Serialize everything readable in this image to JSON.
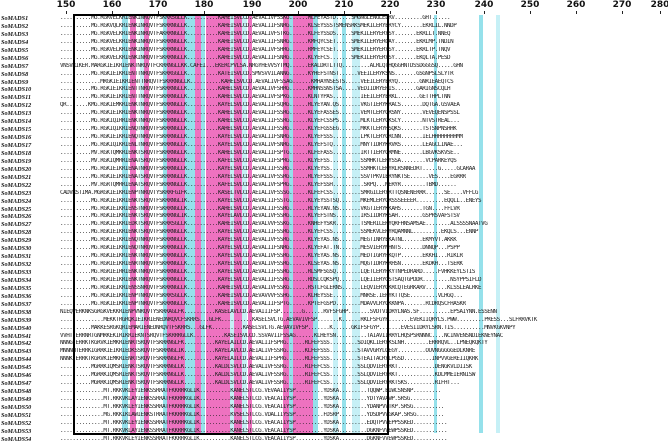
{
  "ruler": {
    "ticks": [
      {
        "label": "150"
      },
      {
        "label": "160"
      },
      {
        "label": "170"
      },
      {
        "label": "180"
      },
      {
        "label": "190"
      },
      {
        "label": "200"
      },
      {
        "label": "210"
      },
      {
        "label": "220"
      },
      {
        "label": "230"
      },
      {
        "label": "240"
      },
      {
        "label": "250"
      },
      {
        "label": "260"
      },
      {
        "label": "270"
      },
      {
        "label": "280"
      }
    ]
  },
  "colors": {
    "identical": "#e94aae",
    "similar": "#54cede",
    "box": "#000000"
  },
  "sequences": [
    {
      "name": "SoMADS1",
      "seq": "..........MG.RGRVELKRIENKINRQVTFSKRRSGLLK..........KAHEISVLCD.AEVALIVFSSKG......MLFEYASTD.....SMGNGLENGLELRV.........GHT......"
    },
    {
      "name": "SoMADS2",
      "seq": "..........MG.RGKVQLKRIENKINRQVTFSKRRNGLLK..........KAHEISVLCD.AEVALIIFSNRG......KLSEYSSSTSMENSRKSMEKILERYERYCY.......EKRLIL.NNDP"
    },
    {
      "name": "SoMADS3",
      "seq": "..........MG.RGKVELKRIENKINRQVTFAKRRNGLLK..........KAHEISVLCD.AEVALIVFSTKG......KLFEYSSDS.....SMEKILERYERYSY.......EKRLLT.NNEQ"
    },
    {
      "name": "SoMADS4",
      "seq": "..........MG.RGKVELKRIENKINRQVTFSKRRNGLLK..........KAHEISVLCD.AEVALIIFSNRG......KMFQYCSET.....SMEKILERYERCAY.......EKRLMP.TNDIN"
    },
    {
      "name": "SoMADS5",
      "seq": "..........MG.RGKVELKRIENKINRQVTFSKRRNGLLK..........KAHEISVLCD.AEVALIVFSHRG......RMFEYCSET.....SMEKILERYERYSY.......EKRLTP.TNQV"
    },
    {
      "name": "SoMADS6",
      "seq": "..........MG.RGKVELKRIENKINRQVTFSKRRNGLLK..........KAHEISVLCD.AEVALIIFSNRG......KLYEFCS.......SMEKILERYERYSY.......EKQLTA.PESD"
    },
    {
      "name": "SoMADS7",
      "seq": "VNSVRIKER.MARGKIEIKRIENKTNRQVTFCKRRNGLLKK.CAFEI...EKERCPVLSA.NRGYHEVVSYTMQ......EKALDRTLTTQ.........ALRLQTHQGGHNTDSSDGGGSQ.....GHN"
    },
    {
      "name": "SoMADS8",
      "seq": "..........MG.RGKIEIKRIENTTNRQVTFSKRRGGLLK..........KATEISVLCD.SMVSVVILANNG......KYHEFSTNST......VEEILERYKSNS.......GSGNPSLSLYTR"
    },
    {
      "name": "SoMADS9",
      "seq": ".............MRGKIEIKRIENTTNRQVTFSKRRNGLLK..........KAHELSVLCD.AEVALIVFSSAG......KMHAYNSESTS.....VEEILERYERYQ.......GNRIEAEQTCS"
    },
    {
      "name": "SoMADS10",
      "seq": "..........MG.RGKIEIKRIENTTNRQVTFSKRRNGLLK..........KAHELSVLCD.AEVALIVFSHRG......KMHNSSNSTSA.....VEDIIDRYERIS.......GARIGNSCQLH"
    },
    {
      "name": "SoMADS11",
      "seq": "..........MG.RGKIEIKRIENTTNRQVTFSKRRNGLLK..........KAHELSVLCD.AEVALIVFSPKG......KLNTYPAS.........IEEILERYERKL.......GETTHPLTNN"
    },
    {
      "name": "SoMADS12",
      "seq": "QR.......KMG.RGKIEMKRIENKTNRQVTFSKRRNGLLK..........KAYELSVLCD.AEVALIIFSQRG......RLYEYAN.QS.......VKGTIERYKRACS.......DQTGA.GSVAEA"
    },
    {
      "name": "SoMADS13",
      "seq": "..........MG.RGKIEIKRIENKTNRQVTFSKRRNGLLK..........KAHELSVLCD.AEVALIIFSSRG......KLYEFASSES.......VEMTLERYQRSNY.......VEVEQENSPSSL"
    },
    {
      "name": "SoMADS14",
      "seq": "..........MG.RGKIQIRRIENKTNRQVTFSKRRNGLLK..........KAHELSVLCD.AEVALIIFSSRG......KLYEFCSSPS.......MLKTLERYQKSCY.......NTVSTREAL..."
    },
    {
      "name": "SoMADS15",
      "seq": "..........MG.RGKIQIKRIENQTNRQVTFSKRRNGLLK..........KAHELSVLCD.AEVALIIFSSRG......KLYEFGSSEG.......MKKTLERYHSQKS.......TSTSNPNSHHK"
    },
    {
      "name": "SoMADS16",
      "seq": "..........MG.RGKIEIKRIENQTNRQVTFSKRRNGLLK..........KAYELSVLCD.AEVALIIFSNRG......KLYEFSSS.........LPKTLERYQRCNN.......IELHHHHHHHHMM"
    },
    {
      "name": "SoMADS17",
      "seq": "..........MG.RGKIQIKRIENLTNRQVTFSKRRNGLLK..........KAYELSVLCD.AEVALIVFSNRG......KLYEFSTQ.........MNYTIDRYKRVRS.......LEAGCLINAE..."
    },
    {
      "name": "SoMADS18",
      "seq": "..........MV.RGKTQMKRIENKTSRQVTFSKRRNGLLK..........KAHELSVLCD.AEVALIIFSPTG......KLFEFASS.........IRTTIERYQRMNE.......LBGVKSKVSE.."
    },
    {
      "name": "SoMADS19",
      "seq": "..........MV.RGKIQMRRIENATSRQVTFSKRRNGLLK..........KAFELSVLCD.AEVALIIFSPRG......KLYEFSS..........SSMHKTLERYSSA........VCPARKEYQS"
    },
    {
      "name": "SoMADS20",
      "seq": "..........MG.RGKIEIKRIENATNRQVTFSKRRNGLLK..........KAYELSVLCD.AEVALIIFSSRG......KLYEYSS..........SSMHKTLERYRLRSNNEDRT.....G.....GCARAA"
    },
    {
      "name": "SoMADS21",
      "seq": "..........MG.RGKIEIKRIENATSRQVTFSKRRNGLLK..........KAYELSVLCD.AEVALIVFSSRG......RLYEFSSS.........SSVTPKVIERYNKTSE......VES....EGRRR"
    },
    {
      "name": "SoMADS22",
      "seq": "..........MV.RGRTQMRRIENATSRQVTFSKRRNGLLK..........KAFELSVLCD.AEVALIVFSPRG......KLYEFSSH..........SRPQ...MERYR........TBMD......"
    },
    {
      "name": "SoMADS23",
      "seq": "CADVRSTIMA.MGRGKIEIKRIENPTNRQVTYSKRRFGIFK..........KASELTVLCD.AEIALIVFSSSG......KLFEFCSS.........SMRGILERYRTTQSNENERRR......SE....VFFLG"
    },
    {
      "name": "SoMADS24",
      "seq": "..........MG.RGKIEIKRIENKTSRQVTFSKRRNGLIK..........KAYELSVLCD.AEVALIIFSSTG......KLYEYSSTSQ.......MKEMLERYQRSSSEEEER.........EQQLL..ENEYS"
    },
    {
      "name": "SoMADS25",
      "seq": "..........MG.RGKIEIKRIENSTNRQVTFSKRRNGLLK..........KAHELSVLCD.AEVALIIFSSRG......RLYEYAN.NS.......VKGTIERYKKAHS.......TGN....FFLVR"
    },
    {
      "name": "SoMADS26",
      "seq": "..........MG.RGKIEIKRIENKTSRQVTFSKRRNGLIK..........KAYELAVLCD.AEVALIVFSSRG......KLYEFSTNS........IRSIIDRYKSAH........GSPRSVAFSTSV"
    },
    {
      "name": "SoMADS27",
      "seq": "..........MG.RGKIEIKRIEDKTSRQVTFSKRRSGLLK..........KAHEISVLCD.AEVALVVFSSKG......KNHEFYSKR........TSMERILERYQRFHNSAMSAE........ALSSSSNAATVG"
    },
    {
      "name": "SoMADS28",
      "seq": "..........MG.RGKIEIKRIENKTSRQVTFSKRRNGLLK..........KAYELSVLCD.AEVALIIFSSRG......KLYEFCSS.........SSMEKVLERYRQAMNNL.........EKQLS...ENNP"
    },
    {
      "name": "SoMADS29",
      "seq": "..........MG.RGKIEIKRIENQTNRQVTFSKRRNGLLK..........KAYELSVLCD.AEVALIVFSSRG......KLYEYAS.NS.......MEGTINRYEKATNL......EKMYVT.AKKK"
    },
    {
      "name": "SoMADS30",
      "seq": "..........MG.RGKIEIKRIENQTNRQVTFSKRRNGLLK..........KAYELSVLCD.AEVALIIFSNRG......KLYEFAT.TN.......MESVIERYNHNTS.......DNNQP...PSPP"
    },
    {
      "name": "SoMADS31",
      "seq": "..........MG.RGKIEIKRIENKTNRQVTFSKRRNGLLK..........KAYELSVLCD.AEVALIVFSSRG......KLYEYAS.NS.......MEDTIGRYHKQTP.......EKKHI...RIKLR"
    },
    {
      "name": "SoMADS32",
      "seq": "..........MG.RGRIEIKRIENRTNRQVTFSKRRNGLLK..........KAYELSVLCD.AEVALIVFSSRG......KLSEYAS.NS.......MQGTIDRYKRHSN.......EKDKH...TSERK"
    },
    {
      "name": "SoMADS33",
      "seq": "..........MG.RGRIEIRRIENKTNRQVTFSKRRNGLLK..........KAYELSVLCD.AEVALIIFSSRG......RLSMFSGSQ........LQETLERYRKYTNPEDRARD.....FVHKKEYLSTIS"
    },
    {
      "name": "SoMADS34",
      "seq": "..........MG.RGRIEIKRIENKTNRQVTFSKRRNGLLK..........KAYELSVLCD.AEVALIIFSSRG......RDSLCQKSPQ.......LQEIIERYGSTSAQTGPDDR.........NSYPPSIFLD"
    },
    {
      "name": "SoMADS35",
      "seq": "..........MG.RGKIEIKRIENSSNRQVTFSKRRNGLLK..........KAHEISVLCD.AEVALIVFSSKG......RSTLFGLERNS......LEQVIERYQKRCQTEGRKARV.......KLSSLEALRKE"
    },
    {
      "name": "SoMADS36",
      "seq": "..........MG.RGKIEIKRIENPTNRQVTFSKRRSGLLK..........KAHEISVLCD.AEVAVVVFSSHG......KLHEYSSE.........MNRSE.IERYKTTQSE.........VLHGQ..."
    },
    {
      "name": "SoMADS37",
      "seq": "..........MG.RGKIEIKRIENPTNRQVTFSKRRNGLLK..........KAHEISVLCD.AEVALIIFSPTG......KPTEFGSPD........MDAVVLRYQKKNPA.......RCDRQSCFHASKR"
    },
    {
      "name": "SoMADS38",
      "seq": "NIEQVERKNKSGRGKVEKKRIENPVNRQVTYSKRRAGLFK..........KASELAVLCD.AEVAIIIFSP.......G......RVFSFGHP.......SVDTVIDRYLNAS.SF..........EPSAIYNN.ESSENN"
    },
    {
      "name": "SoMADS39",
      "seq": "..............MEKKTRGRQKIEIKRIENEDNRQVCFSKRRS...GLFK..........KASELSVLTG.AEVAVIVFSP.......K......RKLFSFGYP.......EVEKIIQRYLS.PWW.........PRESS...SLFRRVKTK"
    },
    {
      "name": "SoMADS40",
      "seq": "..........MAKKESRGKQRIEMARIENEDNRQVTFSKRRS...GLFK..........KASELSVLTG.AEVAVIVFSP.......K......GKIFSFGYP.......EVESIIDRYLSRN.TIS..........MNVKGKVNPY"
    },
    {
      "name": "SoMADS41",
      "seq": "VVHTTERRNRTGNMRKEKIRIKRIEKNTSRQVTFSKRRRGLLK..........KASEISVLCD.SSVAVIIFSSAG......KLHEYSN..........TAIAVIIRRYLHQSPSRNNNC....NCINVENSNDIEKNEYNAC"
    },
    {
      "name": "SoMADS42",
      "seq": "NNNGTERRKTKGRVKIEMKRIENRTSRQVTFSKRRNGLFK..........KAYELAILCD.AEVALIIFSPRG......RLFEFSSS.........SDIQKLIERYKSLNH........ERRRQVL..LPNEQKQKTY"
    },
    {
      "name": "SoMADS43",
      "seq": "MNNNHTERRKIGRRKIEIKRIEDKSSRQVTFSKRRNGLIK..........KAYELAVLCD.AEIALIVFSSRG......KLFEFSSS.........STAVVGRYLQEGY.........OUVNGGGGGEDLKNRE"
    },
    {
      "name": "SoMADS44",
      "seq": "NNNKTERRKTKGRVKIEMKRIENRTSRQVTFSKRRNGLFK..........KAYELAILCD.AEVALIIFSPRG......RLFEFSSS.........STEAITACRYLPGSD.........INPVVGEREIIQKRK"
    },
    {
      "name": "SoMADS45",
      "seq": "..........MGRRKIQMSRIENKTSRQVTFSKRRNGLLK..........KALDLSVLCD.AEVALIVFSSRG......RIFEFCSS.........SSLQDVIERYRKT............DENGKVLDIISK"
    },
    {
      "name": "SoMADS46",
      "seq": "..........MGRRKIQMSRIENKTSRQVTFSKRRNGLLK..........KALDLSVLCD.AEVALIVFSSRG......RIFEFCSS.........SSLQDVIERYRKT............KDLMMEIERNISW"
    },
    {
      "name": "SoMADS47",
      "seq": "..........MGRRKIQMSRIENKTSRQVTFSKRRNGLLK..........KALDLSVLCD.AEVALIVFSSRG......RIFEFCSS.........SSLQDVIERYRKTSKS.........RIFHT..."
    },
    {
      "name": "SoMADS48",
      "seq": "..............MT.RKKVKLEYIENKSSRRATFKKRRKGLIK..........KANELSTLCG.VEVAAIIYSP.........YDSKA.........TQQWP.EIWCSNSNP........."
    },
    {
      "name": "SoMADS49",
      "seq": "..............MT.RKKVKLAYIENKSSRRATFKKRRKGLIK..........KANELSTLCD.VEACAIIYSP.........YDSKA.........YDTYAVAWP.SRSG.........."
    },
    {
      "name": "SoMADS50",
      "seq": "..............MT.RKKVKLEYIENKSSRRATFKKRRKGLIK..........KANELSTLCG.VEACAIIYSP.........YDSKA.........YDANPVVTKP.SRSG.........."
    },
    {
      "name": "SoMADS51",
      "seq": "..............MG.RKKIKLAWIENKSTRRATFKKRRKGLIK..........KVSELSTLCG.VDALIIYSSP.........FDSRP.........YDSDPVVGKAP.SRSG........."
    },
    {
      "name": "SoMADS52",
      "seq": "..............MT.RKKVKLEYIENKSSRRATFKKRRKGLIK..........KANELSTLCG.VEACAIIYSP.........YDSKA.........EDQTPVVEPPSSKED..........."
    },
    {
      "name": "SoMADS53",
      "seq": "..............MT.RKKVKLAYIENKSSRRATFKKRRKGLIK..........KANELSTLCG.VEACAIIYSP.........YDSKA.........DGKNFVVEWPSSKED..........."
    },
    {
      "name": "SoMADS54",
      "seq": "..............MT.RKKVKLEYIENKSSRRATFKKRRKGLIK..........KANELSTLCG.VEACAIIYSP.........YDSKA.........DGKNFVVEWPSSKED..........."
    }
  ]
}
